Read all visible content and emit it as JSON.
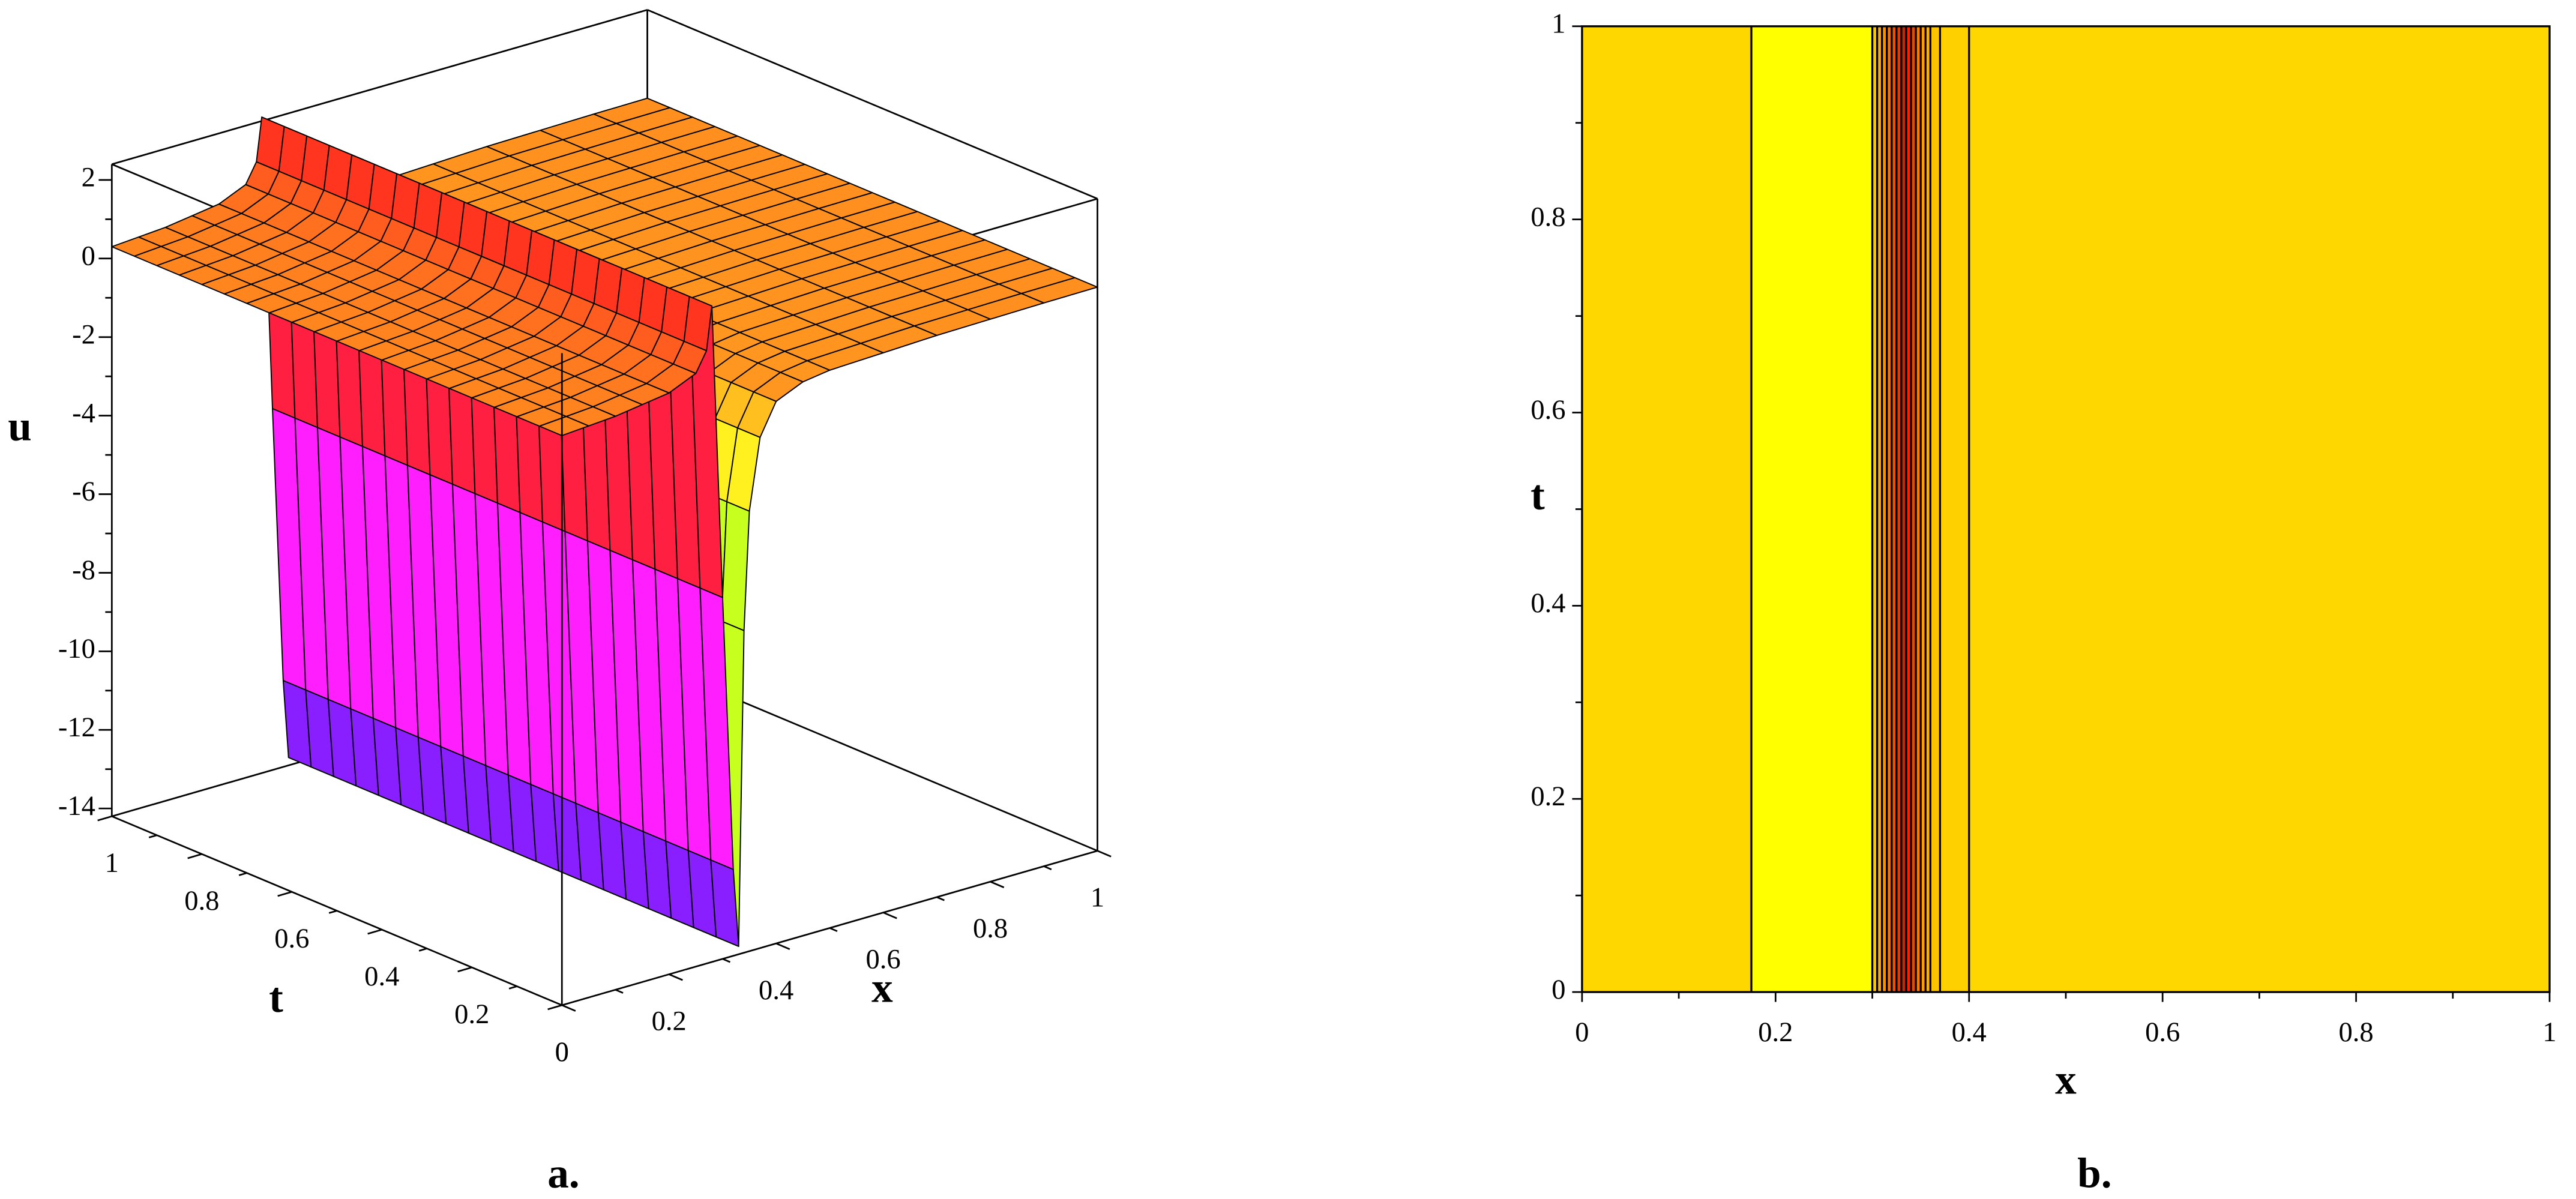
{
  "chart_data": [
    {
      "type": "surface",
      "x": [
        0,
        0.05,
        0.1,
        0.15,
        0.2,
        0.25,
        0.27,
        0.28,
        0.3,
        0.32,
        0.33,
        0.34,
        0.35,
        0.37,
        0.4,
        0.45,
        0.5,
        0.6,
        0.7,
        0.8,
        0.9,
        1
      ],
      "u": [
        0.3,
        0.35,
        0.4,
        0.5,
        0.6,
        0.9,
        1.4,
        2.5,
        -5,
        -12,
        -14,
        -6,
        -3,
        -1.2,
        -0.4,
        -0.1,
        0,
        0.05,
        0.1,
        0.12,
        0.14,
        0.15
      ],
      "t": [
        0,
        0.05,
        0.1,
        0.15,
        0.2,
        0.25,
        0.3,
        0.35,
        0.4,
        0.45,
        0.5,
        0.55,
        0.6,
        0.65,
        0.7,
        0.75,
        0.8,
        0.85,
        0.9,
        0.95,
        1
      ],
      "xlim": [
        0,
        1
      ],
      "tlim": [
        0,
        1
      ],
      "ulim": [
        -14.2,
        2.4
      ],
      "xticks": [
        0,
        0.2,
        0.4,
        0.6,
        0.8,
        1
      ],
      "tticks": [
        0,
        0.2,
        0.4,
        0.6,
        0.8,
        1
      ],
      "uticks": [
        -14,
        -12,
        -10,
        -8,
        -6,
        -4,
        -2,
        0,
        2
      ],
      "minor_xticks": [
        0.1,
        0.3,
        0.5,
        0.7,
        0.9
      ],
      "minor_tticks": [
        0.1,
        0.3,
        0.5,
        0.7,
        0.9
      ],
      "minor_uticks": [
        -13,
        -11,
        -9,
        -7,
        -5,
        -3,
        -1,
        1
      ],
      "xlabel": "x",
      "tlabel": "t",
      "ulabel": "u",
      "caption": "a."
    },
    {
      "type": "contour",
      "contours": [
        0.175,
        0.3,
        0.305,
        0.31,
        0.315,
        0.32,
        0.325,
        0.33,
        0.335,
        0.34,
        0.345,
        0.35,
        0.355,
        0.36,
        0.37,
        0.4
      ],
      "fill_colors": [
        "#FFD700",
        "#FFFF00",
        "#FFC400",
        "#FFA800",
        "#FF9000",
        "#FF7000",
        "#F05000",
        "#E03A00",
        "#C82800",
        "#FF2000",
        "#E84800",
        "#FF7A00",
        "#FF9A00",
        "#FFB000",
        "#FFC400",
        "#FFD000",
        "#FFD700"
      ],
      "line_color": "#000000",
      "xlim": [
        0,
        1
      ],
      "ylim": [
        0,
        1
      ],
      "xticks": [
        0,
        0.2,
        0.4,
        0.6,
        0.8,
        1
      ],
      "yticks": [
        0,
        0.2,
        0.4,
        0.6,
        0.8,
        1
      ],
      "minor_xticks": [
        0.1,
        0.3,
        0.5,
        0.7,
        0.9
      ],
      "minor_yticks": [
        0.1,
        0.3,
        0.5,
        0.7,
        0.9
      ],
      "xlabel": "x",
      "ylabel": "t",
      "caption": "b."
    }
  ]
}
